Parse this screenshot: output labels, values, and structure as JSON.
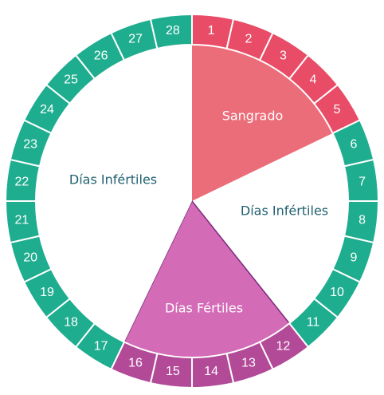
{
  "diagram": {
    "days": [
      "1",
      "2",
      "3",
      "4",
      "5",
      "6",
      "7",
      "8",
      "9",
      "10",
      "11",
      "12",
      "13",
      "14",
      "15",
      "16",
      "17",
      "18",
      "19",
      "20",
      "21",
      "22",
      "23",
      "24",
      "25",
      "26",
      "27",
      "28"
    ],
    "phases": [
      {
        "key": "bleeding",
        "label": "Sangrado",
        "first_day": 1,
        "last_day": 5,
        "color": "#ec6d7a",
        "ring_color": "#e84c66",
        "label_color": "#ffffff"
      },
      {
        "key": "infertile-early",
        "label": "Días Infértiles",
        "first_day": 6,
        "last_day": 11,
        "color": "#ffffff",
        "ring_color": "#1fad8f",
        "label_color": "#1f5f6f"
      },
      {
        "key": "fertile",
        "label": "Días Fértiles",
        "first_day": 12,
        "last_day": 16,
        "color": "#d36bb6",
        "ring_color": "#b24a98",
        "label_color": "#ffffff"
      },
      {
        "key": "infertile-late",
        "label": "Días Infértiles",
        "first_day": 17,
        "last_day": 28,
        "color": "#ffffff",
        "ring_color": "#1fad8f",
        "label_color": "#1f5f6f"
      }
    ]
  }
}
